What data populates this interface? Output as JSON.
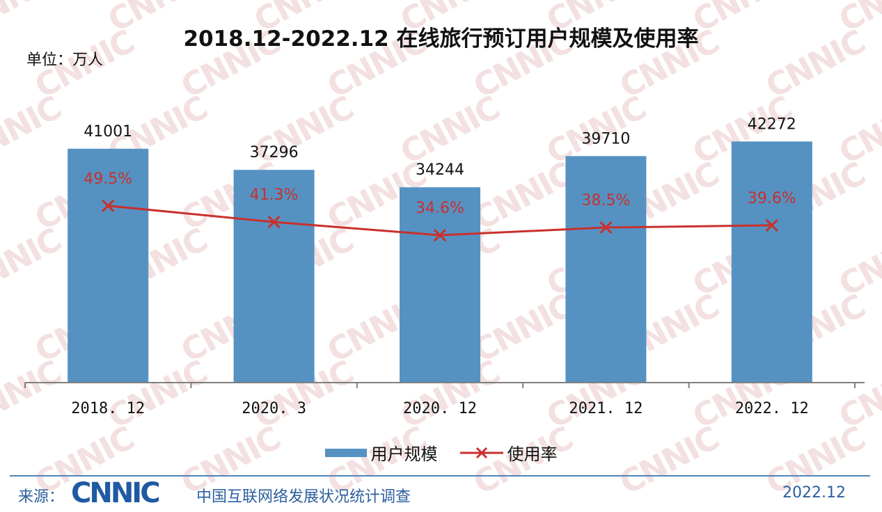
{
  "title": "2018.12-2022.12 在线旅行预订用户规模及使用率",
  "unit": "单位：万人",
  "legend": {
    "bar_label": "用户规模",
    "line_label": "使用率"
  },
  "footer": {
    "source_label": "来源：",
    "logo_text": "CNNIC",
    "source_name": "中国互联网络发展状况统计调查",
    "date": "2022.12"
  },
  "watermark_text": "CNNIC",
  "colors": {
    "bar": "#5592c2",
    "line": "#c9302c",
    "footer_text": "#2c5f9e",
    "watermark": "#f3e0e0"
  },
  "chart_data": {
    "type": "bar",
    "categories": [
      "2018. 12",
      "2020. 3",
      "2020. 12",
      "2021. 12",
      "2022. 12"
    ],
    "series": [
      {
        "name": "用户规模",
        "type": "bar",
        "values": [
          41001,
          37296,
          34244,
          39710,
          42272
        ],
        "labels": [
          "41001",
          "37296",
          "34244",
          "39710",
          "42272"
        ]
      },
      {
        "name": "使用率",
        "type": "line",
        "values": [
          49.5,
          41.3,
          34.6,
          38.5,
          39.6
        ],
        "labels": [
          "49.5%",
          "41.3%",
          "34.6%",
          "38.5%",
          "39.6%"
        ]
      }
    ],
    "ylabel": "单位：万人",
    "ylim": [
      0,
      50000
    ],
    "rate_lim": [
      -40,
      110
    ],
    "legend_position": "bottom",
    "grid": false
  }
}
